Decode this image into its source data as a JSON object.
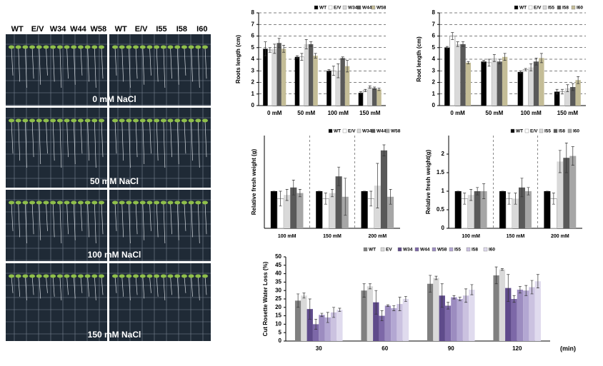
{
  "photos": {
    "column_labels": [
      [
        "WT",
        "E/V",
        "W34",
        "W44",
        "W58"
      ],
      [
        "WT",
        "E/V",
        "I55",
        "I58",
        "I60"
      ]
    ],
    "row_labels": [
      "0 mM NaCl",
      "50 mM NaCl",
      "100 mM NaCl",
      "150 mM NaCl"
    ]
  },
  "chart_data": [
    {
      "type": "bar",
      "ylabel": "Roots length (cm)",
      "categories": [
        "0 mM",
        "50 mM",
        "100 mM",
        "150 mM"
      ],
      "ylim": [
        0,
        8
      ],
      "yticks": [
        0,
        1,
        2,
        3,
        4,
        5,
        6,
        7,
        8
      ],
      "grid": true,
      "legend": "top-right",
      "series": [
        {
          "name": "WT",
          "color": "#000000",
          "values": [
            4.9,
            4.2,
            3.0,
            1.1
          ],
          "errors": [
            0.6,
            0.1,
            0.1,
            0.1
          ]
        },
        {
          "name": "E/V",
          "color": "#ffffff",
          "values": [
            4.8,
            4.2,
            3.0,
            1.3
          ],
          "errors": [
            0.2,
            0.3,
            0.4,
            0.1
          ]
        },
        {
          "name": "W34",
          "color": "#d9d9d9",
          "values": [
            4.9,
            5.3,
            3.0,
            1.6
          ],
          "errors": [
            0.4,
            0.4,
            0.6,
            0.1
          ]
        },
        {
          "name": "W44",
          "color": "#595959",
          "values": [
            5.4,
            5.3,
            4.1,
            1.5
          ],
          "errors": [
            0.4,
            0.2,
            0.1,
            0.1
          ]
        },
        {
          "name": "W58",
          "color": "#c4bd97",
          "values": [
            4.9,
            4.3,
            3.4,
            1.4
          ],
          "errors": [
            0.3,
            0.2,
            0.5,
            0.1
          ]
        }
      ]
    },
    {
      "type": "bar",
      "ylabel": "Root length (cm)",
      "categories": [
        "0 mM",
        "50 mM",
        "100 mM",
        "150 mM"
      ],
      "ylim": [
        0,
        8
      ],
      "yticks": [
        0,
        1,
        2,
        3,
        4,
        5,
        6,
        7,
        8
      ],
      "grid": true,
      "legend": "top-right",
      "series": [
        {
          "name": "WT",
          "color": "#000000",
          "values": [
            5.0,
            3.8,
            2.9,
            1.2
          ],
          "errors": [
            0.1,
            0.1,
            0.1,
            0.2
          ]
        },
        {
          "name": "E/V",
          "color": "#ffffff",
          "values": [
            6.0,
            3.7,
            3.1,
            1.2
          ],
          "errors": [
            0.3,
            0.3,
            0.1,
            0.2
          ]
        },
        {
          "name": "I55",
          "color": "#d9d9d9",
          "values": [
            5.3,
            4.1,
            3.3,
            1.5
          ],
          "errors": [
            0.2,
            0.3,
            0.3,
            0.3
          ]
        },
        {
          "name": "I58",
          "color": "#595959",
          "values": [
            5.3,
            3.8,
            3.8,
            1.6
          ],
          "errors": [
            0.2,
            0.2,
            0.3,
            0.3
          ]
        },
        {
          "name": "I60",
          "color": "#c4bd97",
          "values": [
            3.7,
            4.2,
            4.1,
            2.2
          ],
          "errors": [
            0.1,
            0.3,
            0.4,
            0.3
          ]
        }
      ]
    },
    {
      "type": "bar",
      "ylabel": "Relative fresh weight (g)",
      "categories": [
        "100 mM",
        "150 mM",
        "200 mM"
      ],
      "ylim": [
        0,
        2.5
      ],
      "separators": true,
      "legend": "top-right",
      "series": [
        {
          "name": "WT",
          "color": "#000000",
          "values": [
            1.0,
            1.0,
            1.0
          ],
          "errors": [
            0,
            0,
            0
          ]
        },
        {
          "name": "E/V",
          "color": "#ffffff",
          "values": [
            0.8,
            0.8,
            0.8
          ],
          "errors": [
            0.2,
            0.15,
            0.2
          ]
        },
        {
          "name": "W34",
          "color": "#d9d9d9",
          "values": [
            0.9,
            0.95,
            1.15
          ],
          "errors": [
            0.15,
            0.1,
            0.6
          ]
        },
        {
          "name": "W44",
          "color": "#595959",
          "values": [
            1.1,
            1.4,
            2.1
          ],
          "errors": [
            0.2,
            0.25,
            0.15
          ]
        },
        {
          "name": "W58",
          "color": "#a6a6a6",
          "values": [
            0.95,
            0.85,
            0.85
          ],
          "errors": [
            0.1,
            0.5,
            0.2
          ]
        }
      ]
    },
    {
      "type": "bar",
      "ylabel": "Relative fresh weight(g)",
      "categories": [
        "100 mM",
        "150 mM",
        "200 mM"
      ],
      "ylim": [
        0,
        2.5
      ],
      "yticks": [
        0,
        0.5,
        1,
        1.5,
        2
      ],
      "separators": true,
      "legend": "top-right",
      "series": [
        {
          "name": "WT",
          "color": "#000000",
          "values": [
            1.0,
            1.0,
            1.0
          ],
          "errors": [
            0,
            0,
            0
          ]
        },
        {
          "name": "E/V",
          "color": "#ffffff",
          "values": [
            0.8,
            0.8,
            0.8
          ],
          "errors": [
            0.15,
            0.15,
            0.15
          ]
        },
        {
          "name": "I55",
          "color": "#d9d9d9",
          "values": [
            0.9,
            0.8,
            1.8
          ],
          "errors": [
            0.15,
            0.15,
            0.3
          ]
        },
        {
          "name": "I58",
          "color": "#595959",
          "values": [
            1.0,
            1.1,
            1.9
          ],
          "errors": [
            0.1,
            0.25,
            0.4
          ]
        },
        {
          "name": "I60",
          "color": "#a6a6a6",
          "values": [
            1.0,
            1.0,
            1.95
          ],
          "errors": [
            0.2,
            0.1,
            0.25
          ]
        }
      ]
    },
    {
      "type": "bar",
      "ylabel": "Cut Rosette Water Loss (%)",
      "xlabel": "(min)",
      "categories": [
        "30",
        "60",
        "90",
        "120"
      ],
      "ylim": [
        0,
        50
      ],
      "yticks": [
        0,
        5,
        10,
        15,
        20,
        25,
        30,
        35,
        40,
        45,
        50
      ],
      "legend": "top",
      "series": [
        {
          "name": "WT",
          "color": "#808080",
          "values": [
            24,
            30,
            34,
            39
          ],
          "errors": [
            4,
            4,
            5,
            5
          ]
        },
        {
          "name": "EV",
          "color": "#d9d9d9",
          "values": [
            27,
            32.5,
            37.5,
            42.5
          ],
          "errors": [
            1.5,
            1.5,
            1,
            0.5
          ]
        },
        {
          "name": "W34",
          "color": "#5f4b8b",
          "values": [
            19,
            23,
            27,
            31.5
          ],
          "errors": [
            6,
            7,
            7,
            8
          ]
        },
        {
          "name": "W44",
          "color": "#7d68a8",
          "values": [
            10,
            15,
            21,
            25
          ],
          "errors": [
            3,
            3,
            2,
            2
          ]
        },
        {
          "name": "W58",
          "color": "#9c8cc0",
          "values": [
            15.5,
            21,
            26,
            30.5
          ],
          "errors": [
            1,
            0.5,
            1,
            2
          ]
        },
        {
          "name": "I55",
          "color": "#b3a7d2",
          "values": [
            14,
            19.5,
            25,
            30
          ],
          "errors": [
            3,
            1.5,
            1,
            3
          ]
        },
        {
          "name": "I58",
          "color": "#cbc2e0",
          "values": [
            17,
            22,
            27,
            32
          ],
          "errors": [
            3,
            4,
            4,
            4
          ]
        },
        {
          "name": "I60",
          "color": "#e0dbee",
          "values": [
            18.5,
            25,
            30.5,
            35.5
          ],
          "errors": [
            1,
            1.5,
            3,
            4
          ]
        }
      ]
    }
  ]
}
